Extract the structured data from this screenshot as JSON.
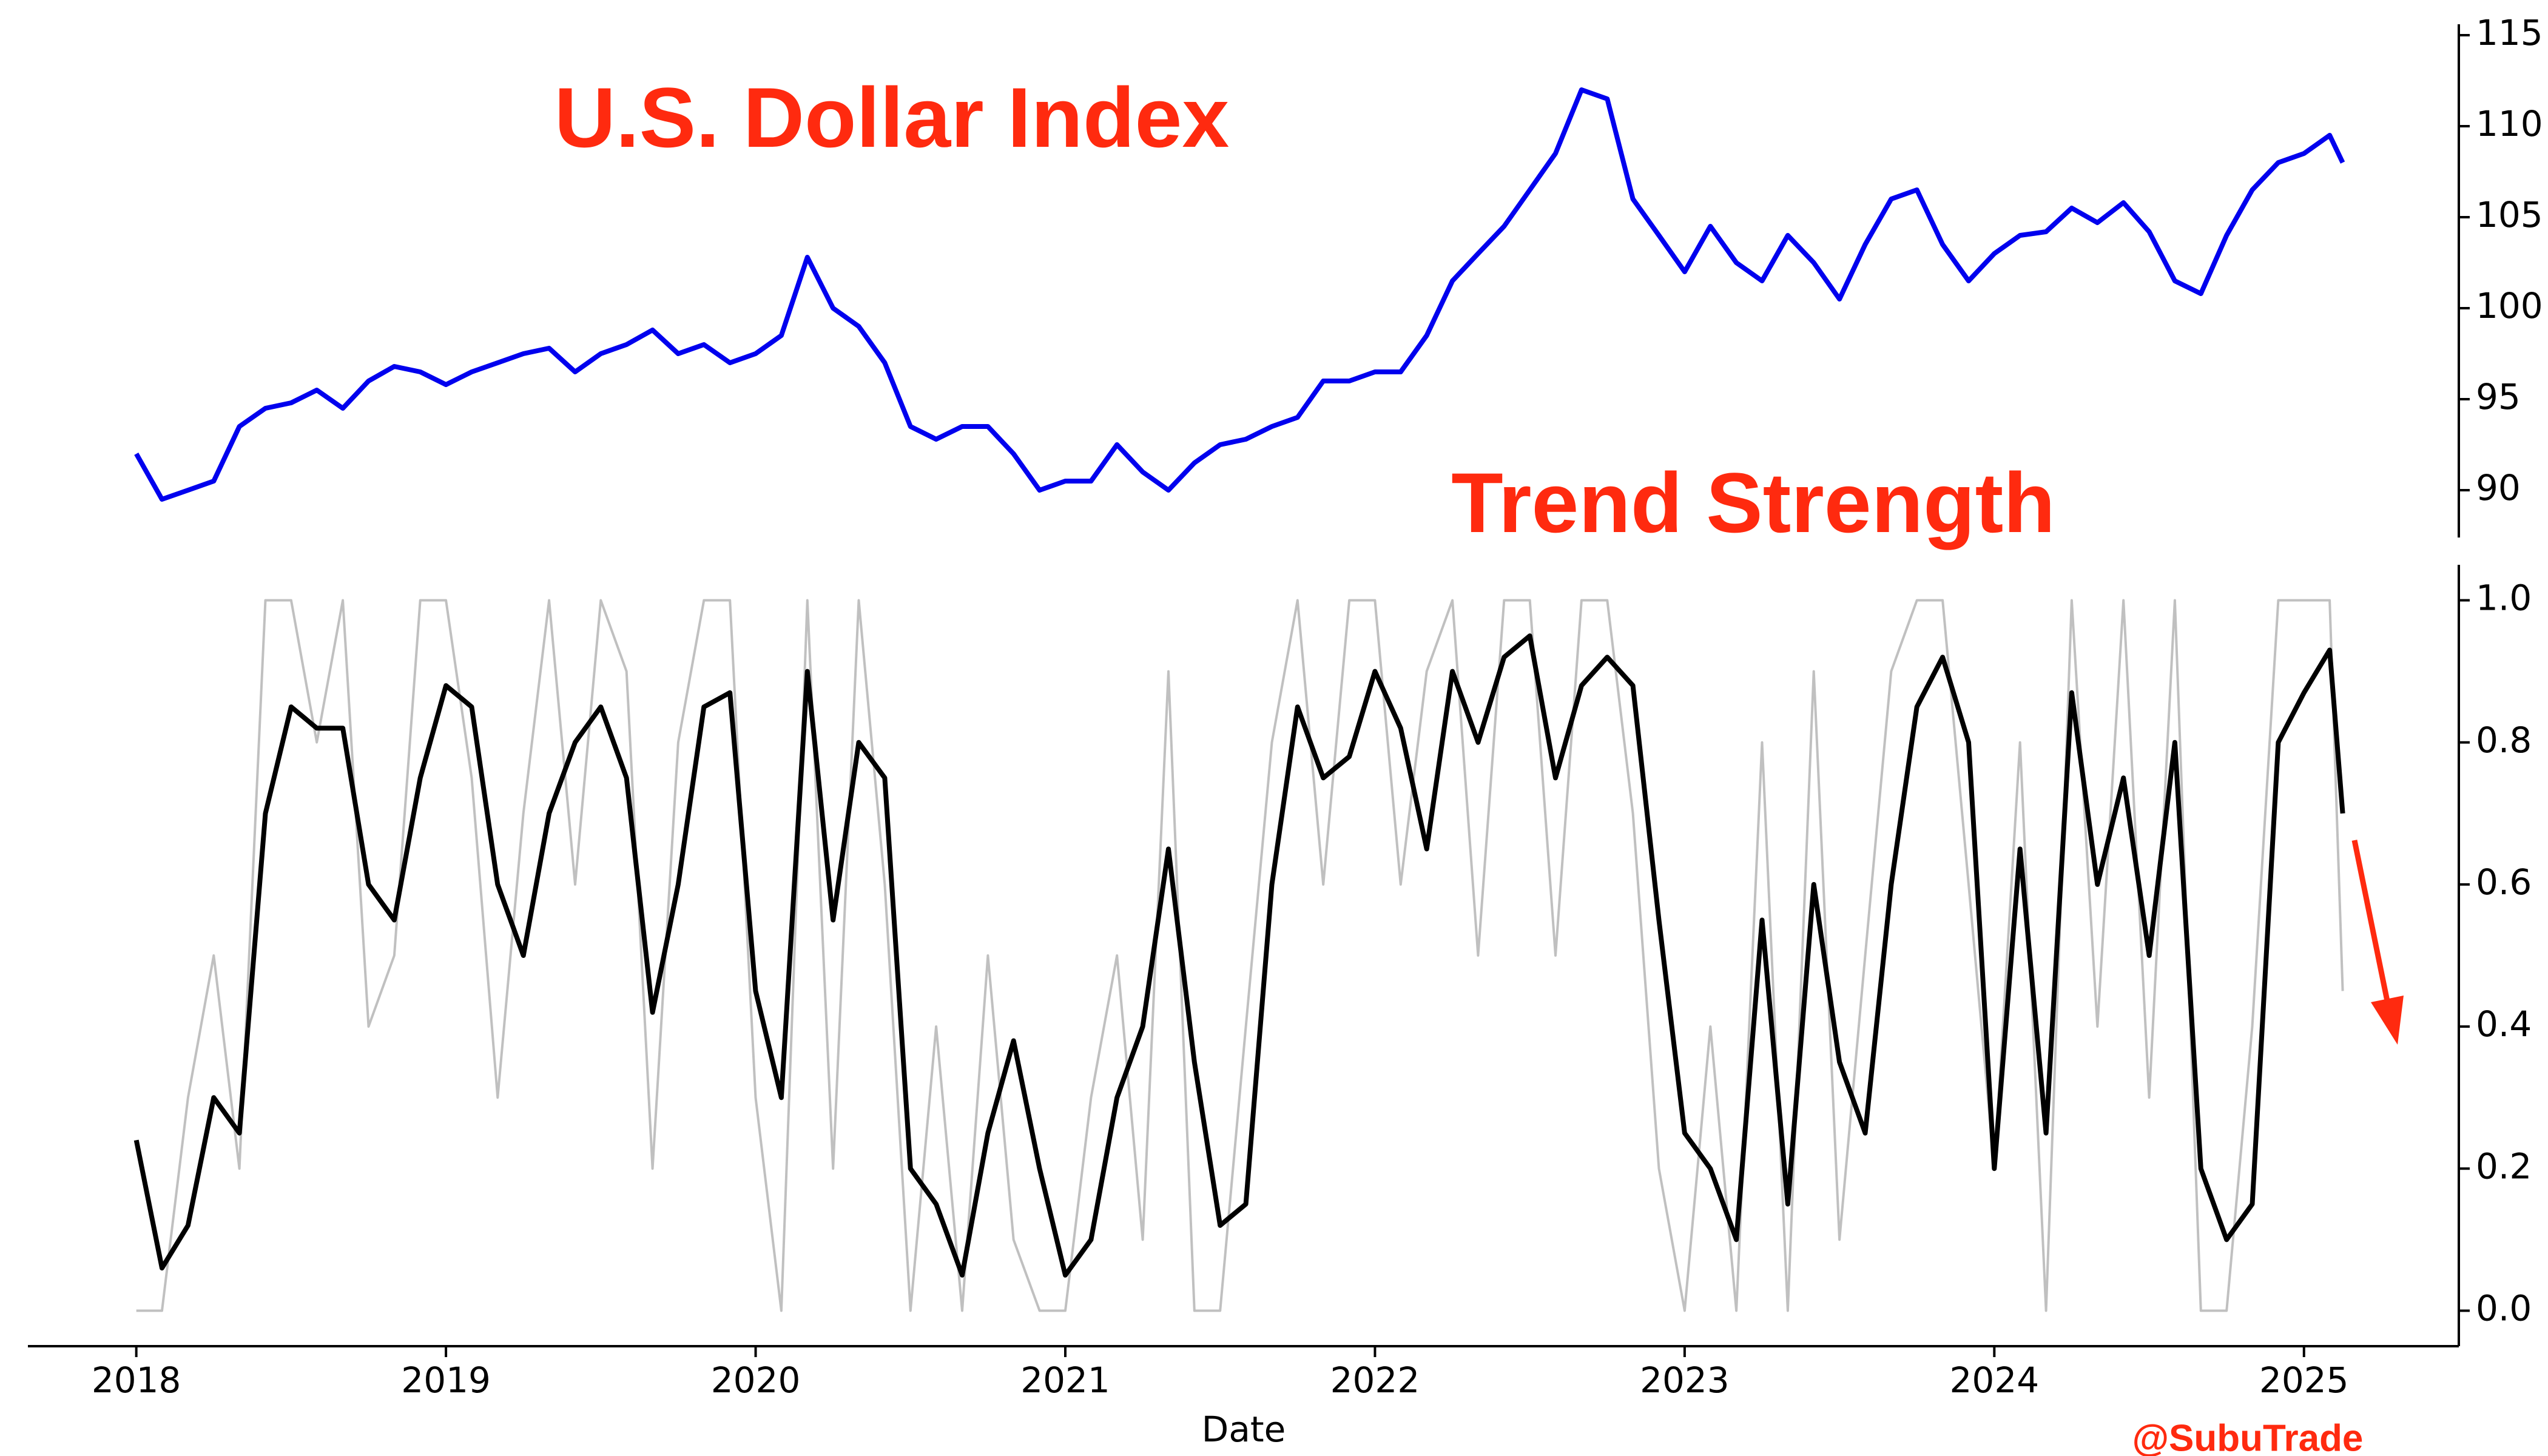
{
  "chart_data": [
    {
      "type": "line",
      "title": "U.S. Dollar Index",
      "x": [
        2018.0,
        2018.083,
        2018.167,
        2018.25,
        2018.333,
        2018.417,
        2018.5,
        2018.583,
        2018.667,
        2018.75,
        2018.833,
        2018.917,
        2019.0,
        2019.083,
        2019.167,
        2019.25,
        2019.333,
        2019.417,
        2019.5,
        2019.583,
        2019.667,
        2019.75,
        2019.833,
        2019.917,
        2020.0,
        2020.083,
        2020.167,
        2020.25,
        2020.333,
        2020.417,
        2020.5,
        2020.583,
        2020.667,
        2020.75,
        2020.833,
        2020.917,
        2021.0,
        2021.083,
        2021.167,
        2021.25,
        2021.333,
        2021.417,
        2021.5,
        2021.583,
        2021.667,
        2021.75,
        2021.833,
        2021.917,
        2022.0,
        2022.083,
        2022.167,
        2022.25,
        2022.333,
        2022.417,
        2022.5,
        2022.583,
        2022.667,
        2022.75,
        2022.833,
        2022.917,
        2023.0,
        2023.083,
        2023.167,
        2023.25,
        2023.333,
        2023.417,
        2023.5,
        2023.583,
        2023.667,
        2023.75,
        2023.833,
        2023.917,
        2024.0,
        2024.083,
        2024.167,
        2024.25,
        2024.333,
        2024.417,
        2024.5,
        2024.583,
        2024.667,
        2024.75,
        2024.833,
        2024.917,
        2025.0,
        2025.083,
        2025.125
      ],
      "series": [
        {
          "color": "#0000ee",
          "values": [
            92,
            89.5,
            90,
            90.5,
            93.5,
            94.5,
            94.8,
            95.5,
            94.5,
            96,
            96.8,
            96.5,
            95.8,
            96.5,
            97,
            97.5,
            97.8,
            96.5,
            97.5,
            98,
            98.8,
            97.5,
            98,
            97,
            97.5,
            98.5,
            102.8,
            100,
            99,
            97,
            93.5,
            92.8,
            93.5,
            93.5,
            92,
            90,
            90.5,
            90.5,
            92.5,
            91,
            90,
            91.5,
            92.5,
            92.8,
            93.5,
            94,
            96,
            96,
            96.5,
            96.5,
            98.5,
            101.5,
            103,
            104.5,
            106.5,
            108.5,
            112,
            111.5,
            106,
            104,
            102,
            104.5,
            102.5,
            101.5,
            104,
            102.5,
            100.5,
            103.5,
            106,
            106.5,
            103.5,
            101.5,
            103,
            104,
            104.2,
            105.5,
            104.7,
            105.8,
            104.2,
            101.5,
            100.8,
            104,
            106.5,
            108,
            108.5,
            109.5,
            108
          ]
        }
      ],
      "xlim": [
        2017.65,
        2025.5
      ],
      "ylim": [
        87.4,
        115.6
      ],
      "yticks": [
        90,
        95,
        100,
        105,
        110,
        115
      ]
    },
    {
      "type": "line",
      "title": "Trend Strength",
      "xlabel": "Date",
      "annotation": "@SubuTrade",
      "x": [
        2018.0,
        2018.083,
        2018.167,
        2018.25,
        2018.333,
        2018.417,
        2018.5,
        2018.583,
        2018.667,
        2018.75,
        2018.833,
        2018.917,
        2019.0,
        2019.083,
        2019.167,
        2019.25,
        2019.333,
        2019.417,
        2019.5,
        2019.583,
        2019.667,
        2019.75,
        2019.833,
        2019.917,
        2020.0,
        2020.083,
        2020.167,
        2020.25,
        2020.333,
        2020.417,
        2020.5,
        2020.583,
        2020.667,
        2020.75,
        2020.833,
        2020.917,
        2021.0,
        2021.083,
        2021.167,
        2021.25,
        2021.333,
        2021.417,
        2021.5,
        2021.583,
        2021.667,
        2021.75,
        2021.833,
        2021.917,
        2022.0,
        2022.083,
        2022.167,
        2022.25,
        2022.333,
        2022.417,
        2022.5,
        2022.583,
        2022.667,
        2022.75,
        2022.833,
        2022.917,
        2023.0,
        2023.083,
        2023.167,
        2023.25,
        2023.333,
        2023.417,
        2023.5,
        2023.583,
        2023.667,
        2023.75,
        2023.833,
        2023.917,
        2024.0,
        2024.083,
        2024.167,
        2024.25,
        2024.333,
        2024.417,
        2024.5,
        2024.583,
        2024.667,
        2024.75,
        2024.833,
        2024.917,
        2025.0,
        2025.083,
        2025.125
      ],
      "series": [
        {
          "color": "#c0c0c0",
          "values": [
            0,
            0,
            0.3,
            0.5,
            0.2,
            1,
            1,
            0.8,
            1,
            0.4,
            0.5,
            1,
            1,
            0.75,
            0.3,
            0.7,
            1,
            0.6,
            1,
            0.9,
            0.2,
            0.8,
            1,
            1,
            0.3,
            0,
            1,
            0.2,
            1,
            0.6,
            0,
            0.4,
            0,
            0.5,
            0.1,
            0,
            0,
            0.3,
            0.5,
            0.1,
            0.9,
            0,
            0,
            0.4,
            0.8,
            1,
            0.6,
            1,
            1,
            0.6,
            0.9,
            1,
            0.5,
            1,
            1,
            0.5,
            1,
            1,
            0.7,
            0.2,
            0,
            0.4,
            0,
            0.8,
            0,
            0.9,
            0.1,
            0.5,
            0.9,
            1,
            1,
            0.6,
            0.2,
            0.8,
            0,
            1,
            0.4,
            1,
            0.3,
            1,
            0,
            0,
            0.4,
            1,
            1,
            1,
            0.45
          ]
        },
        {
          "color": "#000000",
          "values": [
            0.24,
            0.06,
            0.12,
            0.3,
            0.25,
            0.7,
            0.85,
            0.82,
            0.82,
            0.6,
            0.55,
            0.75,
            0.88,
            0.85,
            0.6,
            0.5,
            0.7,
            0.8,
            0.85,
            0.75,
            0.42,
            0.6,
            0.85,
            0.87,
            0.45,
            0.3,
            0.9,
            0.55,
            0.8,
            0.75,
            0.2,
            0.15,
            0.05,
            0.25,
            0.38,
            0.2,
            0.05,
            0.1,
            0.3,
            0.4,
            0.65,
            0.35,
            0.12,
            0.15,
            0.6,
            0.85,
            0.75,
            0.78,
            0.9,
            0.82,
            0.65,
            0.9,
            0.8,
            0.92,
            0.95,
            0.75,
            0.88,
            0.92,
            0.88,
            0.55,
            0.25,
            0.2,
            0.1,
            0.55,
            0.15,
            0.6,
            0.35,
            0.25,
            0.6,
            0.85,
            0.92,
            0.8,
            0.2,
            0.65,
            0.25,
            0.87,
            0.6,
            0.75,
            0.5,
            0.8,
            0.2,
            0.1,
            0.15,
            0.8,
            0.87,
            0.93,
            0.7
          ]
        }
      ],
      "xlim": [
        2017.65,
        2025.5
      ],
      "xticks": [
        2018,
        2019,
        2020,
        2021,
        2022,
        2023,
        2024,
        2025
      ],
      "ylim": [
        -0.05,
        1.05
      ],
      "yticks": [
        {
          "value": 0,
          "label": "0.0"
        },
        0.2,
        0.4,
        0.6,
        0.8,
        {
          "value": 1,
          "label": "1.0"
        }
      ]
    }
  ]
}
